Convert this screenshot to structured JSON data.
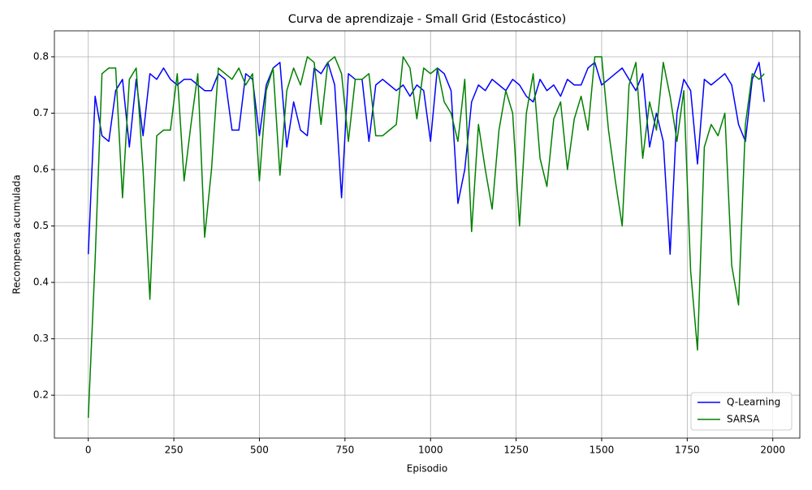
{
  "chart_data": {
    "type": "line",
    "title": "Curva de aprendizaje - Small Grid (Estocástico)",
    "xlabel": "Episodio",
    "ylabel": "Recompensa acumulada",
    "x": [
      0,
      20,
      40,
      60,
      80,
      100,
      120,
      140,
      160,
      180,
      200,
      220,
      240,
      260,
      280,
      300,
      320,
      340,
      360,
      380,
      400,
      420,
      440,
      460,
      480,
      500,
      520,
      540,
      560,
      580,
      600,
      620,
      640,
      660,
      680,
      700,
      720,
      740,
      760,
      780,
      800,
      820,
      840,
      860,
      880,
      900,
      920,
      940,
      960,
      980,
      1000,
      1020,
      1040,
      1060,
      1080,
      1100,
      1120,
      1140,
      1160,
      1180,
      1200,
      1220,
      1240,
      1260,
      1280,
      1300,
      1320,
      1340,
      1360,
      1380,
      1400,
      1420,
      1440,
      1460,
      1480,
      1500,
      1520,
      1540,
      1560,
      1580,
      1600,
      1620,
      1640,
      1660,
      1680,
      1700,
      1720,
      1740,
      1760,
      1780,
      1800,
      1820,
      1840,
      1860,
      1880,
      1900,
      1920,
      1940,
      1960,
      1975
    ],
    "series": [
      {
        "name": "Q-Learning",
        "color": "#0000ff",
        "values": [
          0.45,
          0.73,
          0.66,
          0.65,
          0.74,
          0.76,
          0.64,
          0.76,
          0.66,
          0.77,
          0.76,
          0.78,
          0.76,
          0.75,
          0.76,
          0.76,
          0.75,
          0.74,
          0.74,
          0.77,
          0.76,
          0.67,
          0.67,
          0.77,
          0.76,
          0.66,
          0.75,
          0.78,
          0.79,
          0.64,
          0.72,
          0.67,
          0.66,
          0.78,
          0.77,
          0.79,
          0.75,
          0.55,
          0.77,
          0.76,
          0.76,
          0.65,
          0.75,
          0.76,
          0.75,
          0.74,
          0.75,
          0.73,
          0.75,
          0.74,
          0.65,
          0.78,
          0.77,
          0.74,
          0.54,
          0.6,
          0.72,
          0.75,
          0.74,
          0.76,
          0.75,
          0.74,
          0.76,
          0.75,
          0.73,
          0.72,
          0.76,
          0.74,
          0.75,
          0.73,
          0.76,
          0.75,
          0.75,
          0.78,
          0.79,
          0.75,
          0.76,
          0.77,
          0.78,
          0.76,
          0.74,
          0.77,
          0.64,
          0.7,
          0.65,
          0.45,
          0.7,
          0.76,
          0.74,
          0.61,
          0.76,
          0.75,
          0.76,
          0.77,
          0.75,
          0.68,
          0.65,
          0.76,
          0.79,
          0.72
        ]
      },
      {
        "name": "SARSA",
        "color": "#008000",
        "values": [
          0.16,
          0.44,
          0.77,
          0.78,
          0.78,
          0.55,
          0.76,
          0.78,
          0.6,
          0.37,
          0.66,
          0.67,
          0.67,
          0.77,
          0.58,
          0.68,
          0.77,
          0.48,
          0.6,
          0.78,
          0.77,
          0.76,
          0.78,
          0.75,
          0.77,
          0.58,
          0.74,
          0.78,
          0.59,
          0.74,
          0.78,
          0.75,
          0.8,
          0.79,
          0.68,
          0.79,
          0.8,
          0.77,
          0.65,
          0.76,
          0.76,
          0.77,
          0.66,
          0.66,
          0.67,
          0.68,
          0.8,
          0.78,
          0.69,
          0.78,
          0.77,
          0.78,
          0.72,
          0.7,
          0.65,
          0.76,
          0.49,
          0.68,
          0.6,
          0.53,
          0.67,
          0.74,
          0.7,
          0.5,
          0.7,
          0.77,
          0.62,
          0.57,
          0.69,
          0.72,
          0.6,
          0.69,
          0.73,
          0.67,
          0.8,
          0.8,
          0.67,
          0.58,
          0.5,
          0.75,
          0.79,
          0.62,
          0.72,
          0.67,
          0.79,
          0.73,
          0.65,
          0.74,
          0.42,
          0.28,
          0.64,
          0.68,
          0.66,
          0.7,
          0.43,
          0.36,
          0.68,
          0.77,
          0.76,
          0.77
        ]
      }
    ],
    "xlim": [
      -99,
      2079
    ],
    "ylim": [
      0.124,
      0.846
    ],
    "xticks": [
      0,
      250,
      500,
      750,
      1000,
      1250,
      1500,
      1750,
      2000
    ],
    "yticks": [
      0.2,
      0.3,
      0.4,
      0.5,
      0.6,
      0.7,
      0.8
    ],
    "grid": true,
    "legend": "lower right"
  }
}
